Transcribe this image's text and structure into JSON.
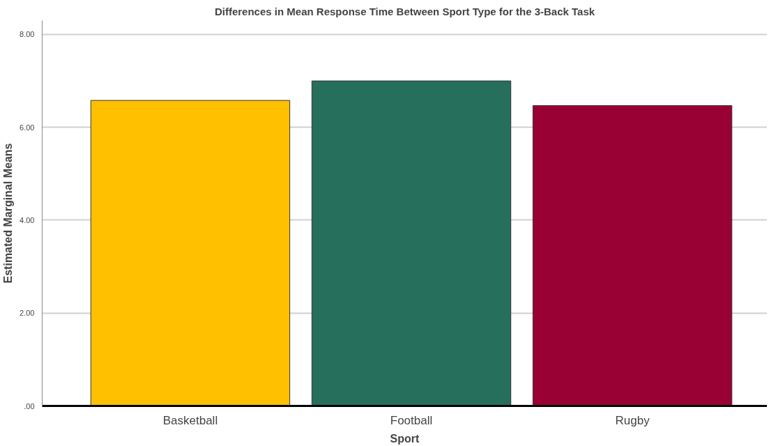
{
  "chart_data": {
    "type": "bar",
    "title": "Differences in Mean Response Time Between Sport Type for the 3-Back Task",
    "xlabel": "Sport",
    "ylabel": "Estimated Marginal Means",
    "categories": [
      "Basketball",
      "Football",
      "Rugby"
    ],
    "values": [
      6.58,
      7.0,
      6.47
    ],
    "colors": [
      "#ffc000",
      "#266f5c",
      "#990033"
    ],
    "ylim": [
      0,
      8.3
    ],
    "yticks": [
      {
        "value": 0,
        "label": ".00"
      },
      {
        "value": 2,
        "label": "2.00"
      },
      {
        "value": 4,
        "label": "4.00"
      },
      {
        "value": 6,
        "label": "6.00"
      },
      {
        "value": 8,
        "label": "8.00"
      }
    ],
    "grid": "y"
  }
}
